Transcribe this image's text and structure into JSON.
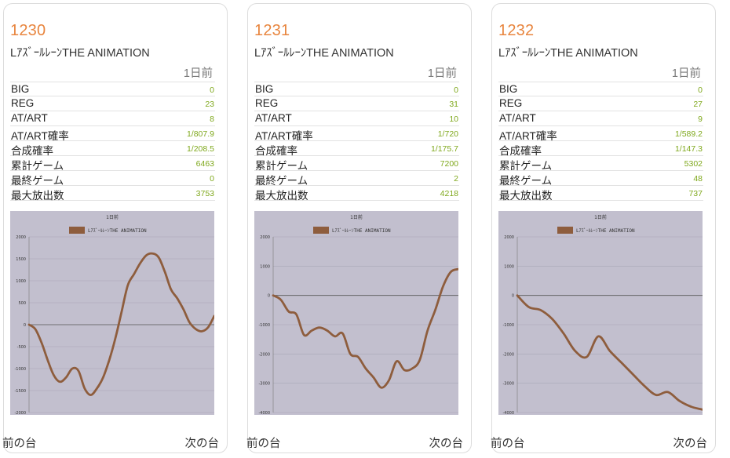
{
  "colors": {
    "accent": "#e8853e",
    "value": "#7fa81c",
    "plot_bg": "#c2bfce",
    "line": "#8e5d3d"
  },
  "nav": {
    "prev": "前の台",
    "next": "次の台"
  },
  "cards": [
    {
      "number": "1230",
      "model": "LｱｽﾞｰﾙﾚｰﾝTHE ANIMATION",
      "day": "1日前",
      "stats": [
        {
          "label": "BIG",
          "value": "0"
        },
        {
          "label": "REG",
          "value": "23"
        },
        {
          "label": "AT/ART",
          "value": "8"
        },
        {
          "label": "AT/ART確率",
          "value": "1/807.9"
        },
        {
          "label": "合成確率",
          "value": "1/208.5"
        },
        {
          "label": "累計ゲーム",
          "value": "6463"
        },
        {
          "label": "最終ゲーム",
          "value": "0"
        },
        {
          "label": "最大放出数",
          "value": "3753"
        }
      ],
      "chart_data": {
        "type": "line",
        "title": "1日前",
        "series": [
          {
            "name": "LｱｽﾞｰﾙﾚｰﾝTHE ANIMATION",
            "values": [
              0,
              -100,
              -400,
              -800,
              -1150,
              -1300,
              -1200,
              -1000,
              -1050,
              -1450,
              -1600,
              -1450,
              -1200,
              -800,
              -300,
              300,
              900,
              1150,
              1400,
              1580,
              1620,
              1530,
              1200,
              800,
              600,
              350,
              50,
              -100,
              -150,
              -60,
              200
            ]
          }
        ],
        "ylim": [
          -2000,
          2000
        ],
        "yticks": [
          2000,
          1500,
          1000,
          500,
          0,
          -500,
          -1000,
          -1500,
          -2000
        ]
      }
    },
    {
      "number": "1231",
      "model": "LｱｽﾞｰﾙﾚｰﾝTHE ANIMATION",
      "day": "1日前",
      "stats": [
        {
          "label": "BIG",
          "value": "0"
        },
        {
          "label": "REG",
          "value": "31"
        },
        {
          "label": "AT/ART",
          "value": "10"
        },
        {
          "label": "AT/ART確率",
          "value": "1/720"
        },
        {
          "label": "合成確率",
          "value": "1/175.7"
        },
        {
          "label": "累計ゲーム",
          "value": "7200"
        },
        {
          "label": "最終ゲーム",
          "value": "2"
        },
        {
          "label": "最大放出数",
          "value": "4218"
        }
      ],
      "chart_data": {
        "type": "line",
        "title": "1日前",
        "series": [
          {
            "name": "LｱｽﾞｰﾙﾚｰﾝTHE ANIMATION",
            "values": [
              0,
              -150,
              -550,
              -650,
              -1350,
              -1200,
              -1100,
              -1200,
              -1400,
              -1300,
              -2000,
              -2100,
              -2500,
              -2800,
              -3150,
              -2900,
              -2250,
              -2550,
              -2500,
              -2200,
              -1200,
              -500,
              300,
              800,
              900
            ]
          }
        ],
        "ylim": [
          -4000,
          2000
        ],
        "yticks": [
          2000,
          1000,
          0,
          -1000,
          -2000,
          -3000,
          -4000
        ]
      }
    },
    {
      "number": "1232",
      "model": "LｱｽﾞｰﾙﾚｰﾝTHE ANIMATION",
      "day": "1日前",
      "stats": [
        {
          "label": "BIG",
          "value": "0"
        },
        {
          "label": "REG",
          "value": "27"
        },
        {
          "label": "AT/ART",
          "value": "9"
        },
        {
          "label": "AT/ART確率",
          "value": "1/589.2"
        },
        {
          "label": "合成確率",
          "value": "1/147.3"
        },
        {
          "label": "累計ゲーム",
          "value": "5302"
        },
        {
          "label": "最終ゲーム",
          "value": "48"
        },
        {
          "label": "最大放出数",
          "value": "737"
        }
      ],
      "chart_data": {
        "type": "line",
        "title": "1日前",
        "series": [
          {
            "name": "LｱｽﾞｰﾙﾚｰﾝTHE ANIMATION",
            "values": [
              0,
              -400,
              -500,
              -800,
              -1300,
              -1900,
              -2100,
              -1400,
              -1900,
              -2300,
              -2700,
              -3100,
              -3400,
              -3300,
              -3600,
              -3800,
              -3900
            ]
          }
        ],
        "ylim": [
          -4000,
          2000
        ],
        "yticks": [
          2000,
          1000,
          0,
          -1000,
          -2000,
          -3000,
          -4000
        ]
      }
    }
  ]
}
